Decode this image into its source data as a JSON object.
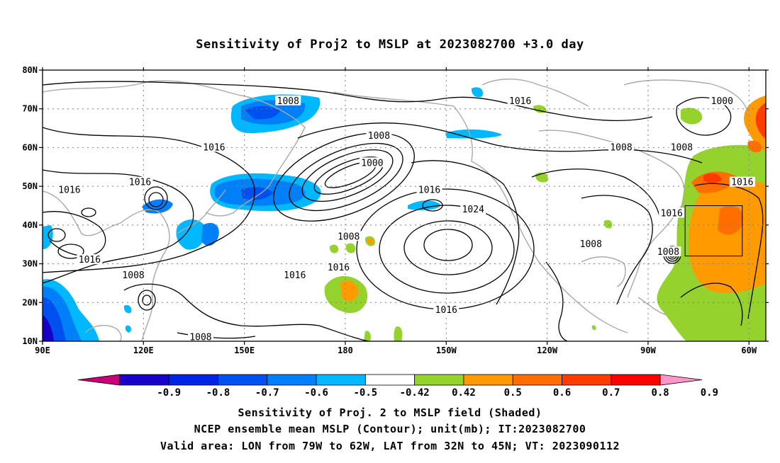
{
  "title": "Sensitivity of Proj2 to MSLP at 2023082700 +3.0 day",
  "map": {
    "lon_ticks": [
      "90E",
      "120E",
      "150E",
      "180",
      "150W",
      "120W",
      "90W",
      "60W"
    ],
    "lat_ticks": [
      "80N",
      "70N",
      "60N",
      "50N",
      "40N",
      "30N",
      "20N",
      "10N"
    ],
    "lon_range": [
      90,
      305
    ],
    "lat_range": [
      10,
      80
    ],
    "valid_box": {
      "lon_west": -79,
      "lon_east": -62,
      "lat_south": 32,
      "lat_north": 45
    },
    "contour_labels": [
      {
        "text": "1008",
        "lon": 163,
        "lat": 72
      },
      {
        "text": "1016",
        "lon": 232,
        "lat": 72
      },
      {
        "text": "1000",
        "lon": 292,
        "lat": 72
      },
      {
        "text": "1008",
        "lon": 190,
        "lat": 63
      },
      {
        "text": "1016",
        "lon": 141,
        "lat": 60
      },
      {
        "text": "1008",
        "lon": 262,
        "lat": 60
      },
      {
        "text": "1008",
        "lon": 280,
        "lat": 60
      },
      {
        "text": "1000",
        "lon": 188,
        "lat": 56
      },
      {
        "text": "1016",
        "lon": 119,
        "lat": 51
      },
      {
        "text": "1016",
        "lon": 98,
        "lat": 49
      },
      {
        "text": "1016",
        "lon": 205,
        "lat": 49
      },
      {
        "text": "1016",
        "lon": 298,
        "lat": 51
      },
      {
        "text": "1016",
        "lon": 277,
        "lat": 43
      },
      {
        "text": "1024",
        "lon": 218,
        "lat": 44
      },
      {
        "text": "1008",
        "lon": 181,
        "lat": 37
      },
      {
        "text": "1008",
        "lon": 253,
        "lat": 35
      },
      {
        "text": "1008",
        "lon": 276,
        "lat": 33
      },
      {
        "text": "1016",
        "lon": 104,
        "lat": 31
      },
      {
        "text": "1016",
        "lon": 165,
        "lat": 27
      },
      {
        "text": "1016",
        "lon": 178,
        "lat": 29
      },
      {
        "text": "1008",
        "lon": 117,
        "lat": 27
      },
      {
        "text": "1016",
        "lon": 210,
        "lat": 18
      },
      {
        "text": "1008",
        "lon": 137,
        "lat": 11
      }
    ]
  },
  "colorbar": {
    "labels": [
      "-0.9",
      "-0.8",
      "-0.7",
      "-0.6",
      "-0.5",
      "-0.42",
      "0.42",
      "0.5",
      "0.6",
      "0.7",
      "0.8",
      "0.9"
    ],
    "colors": [
      "#c8007a",
      "#1800c8",
      "#0024e6",
      "#0050f0",
      "#0080f8",
      "#00b8ff",
      "#ffffff",
      "#96d22d",
      "#ff9a00",
      "#ff6e00",
      "#ff3c00",
      "#ff0000",
      "#ff96c8"
    ]
  },
  "captions": [
    "Sensitivity of Proj. 2 to MSLP field (Shaded)",
    "NCEP ensemble mean MSLP (Contour); unit(mb); IT:2023082700",
    "Valid area: LON from 79W to 62W, LAT from 32N to 45N; VT: 2023090112"
  ]
}
